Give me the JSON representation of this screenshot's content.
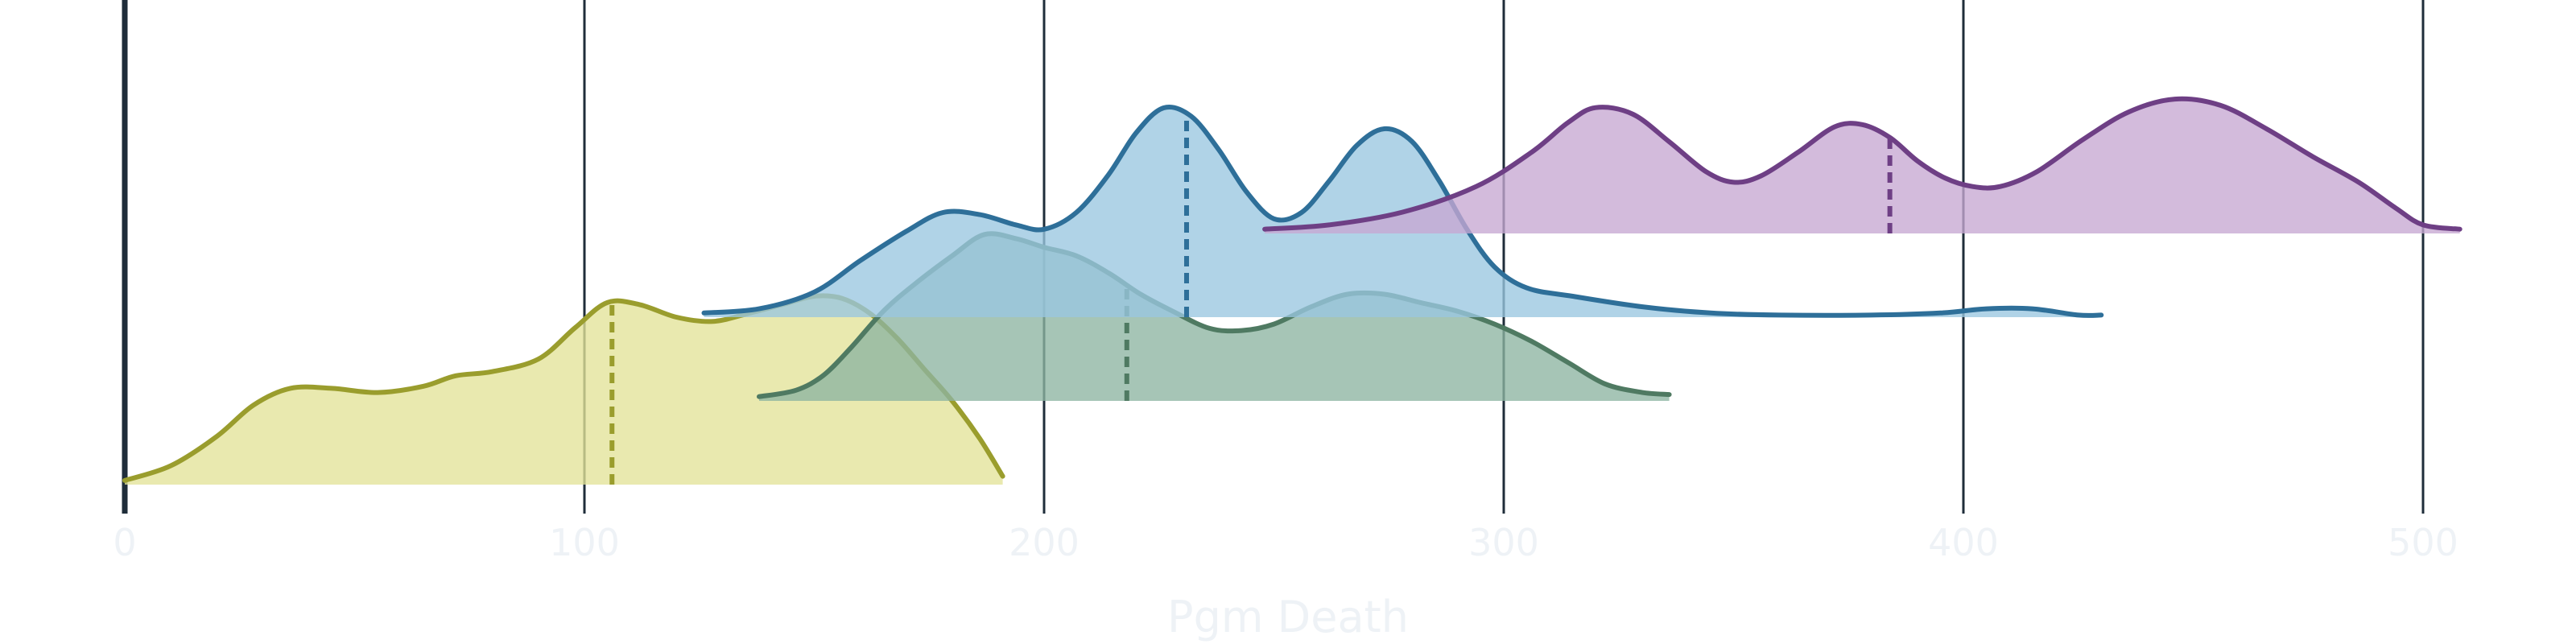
{
  "chart_data": {
    "type": "ridgeline",
    "xlabel": "Pgm Death",
    "xlim": [
      0,
      520
    ],
    "xticks": [
      0,
      100,
      200,
      300,
      400,
      500
    ],
    "xtick_labels": [
      "0",
      "100",
      "200",
      "300",
      "400",
      "500"
    ],
    "grid": "vertical",
    "series": [
      {
        "color": "#9a9d2d",
        "fill": "#e3e398",
        "median": 106,
        "points": [
          [
            0,
            0.02
          ],
          [
            10,
            0.09
          ],
          [
            20,
            0.23
          ],
          [
            28,
            0.38
          ],
          [
            36,
            0.46
          ],
          [
            45,
            0.46
          ],
          [
            55,
            0.44
          ],
          [
            65,
            0.47
          ],
          [
            72,
            0.52
          ],
          [
            80,
            0.54
          ],
          [
            90,
            0.6
          ],
          [
            98,
            0.75
          ],
          [
            105,
            0.87
          ],
          [
            112,
            0.86
          ],
          [
            120,
            0.8
          ],
          [
            128,
            0.78
          ],
          [
            136,
            0.82
          ],
          [
            143,
            0.86
          ],
          [
            150,
            0.9
          ],
          [
            156,
            0.89
          ],
          [
            162,
            0.82
          ],
          [
            168,
            0.7
          ],
          [
            174,
            0.55
          ],
          [
            180,
            0.4
          ],
          [
            186,
            0.22
          ],
          [
            191,
            0.04
          ]
        ]
      },
      {
        "color": "#4f7a62",
        "fill": "#8db5a1",
        "median": 218,
        "points": [
          [
            138,
            0.02
          ],
          [
            146,
            0.05
          ],
          [
            152,
            0.12
          ],
          [
            158,
            0.25
          ],
          [
            165,
            0.42
          ],
          [
            172,
            0.55
          ],
          [
            180,
            0.68
          ],
          [
            187,
            0.78
          ],
          [
            194,
            0.76
          ],
          [
            200,
            0.72
          ],
          [
            207,
            0.68
          ],
          [
            214,
            0.6
          ],
          [
            221,
            0.5
          ],
          [
            228,
            0.42
          ],
          [
            236,
            0.34
          ],
          [
            243,
            0.33
          ],
          [
            250,
            0.36
          ],
          [
            258,
            0.44
          ],
          [
            266,
            0.5
          ],
          [
            274,
            0.5
          ],
          [
            282,
            0.46
          ],
          [
            290,
            0.42
          ],
          [
            298,
            0.36
          ],
          [
            306,
            0.28
          ],
          [
            314,
            0.18
          ],
          [
            322,
            0.08
          ],
          [
            330,
            0.04
          ],
          [
            336,
            0.03
          ]
        ]
      },
      {
        "color": "#2e6f99",
        "fill": "#9ac6e0",
        "median": 231,
        "points": [
          [
            126,
            0.02
          ],
          [
            138,
            0.04
          ],
          [
            150,
            0.12
          ],
          [
            160,
            0.27
          ],
          [
            170,
            0.41
          ],
          [
            178,
            0.5
          ],
          [
            186,
            0.49
          ],
          [
            194,
            0.44
          ],
          [
            200,
            0.42
          ],
          [
            207,
            0.5
          ],
          [
            214,
            0.68
          ],
          [
            220,
            0.88
          ],
          [
            226,
            1.0
          ],
          [
            232,
            0.96
          ],
          [
            238,
            0.8
          ],
          [
            244,
            0.6
          ],
          [
            250,
            0.47
          ],
          [
            256,
            0.5
          ],
          [
            262,
            0.65
          ],
          [
            268,
            0.82
          ],
          [
            274,
            0.9
          ],
          [
            280,
            0.84
          ],
          [
            286,
            0.65
          ],
          [
            292,
            0.42
          ],
          [
            298,
            0.24
          ],
          [
            305,
            0.14
          ],
          [
            315,
            0.1
          ],
          [
            330,
            0.05
          ],
          [
            345,
            0.02
          ],
          [
            360,
            0.01
          ],
          [
            380,
            0.01
          ],
          [
            395,
            0.02
          ],
          [
            405,
            0.04
          ],
          [
            415,
            0.04
          ],
          [
            425,
            0.01
          ],
          [
            430,
            0.01
          ]
        ]
      },
      {
        "color": "#6e3f85",
        "fill": "#c6a8d2",
        "median": 384,
        "points": [
          [
            248,
            0.02
          ],
          [
            262,
            0.04
          ],
          [
            278,
            0.1
          ],
          [
            294,
            0.22
          ],
          [
            306,
            0.38
          ],
          [
            314,
            0.52
          ],
          [
            320,
            0.59
          ],
          [
            328,
            0.56
          ],
          [
            336,
            0.43
          ],
          [
            344,
            0.29
          ],
          [
            350,
            0.24
          ],
          [
            356,
            0.27
          ],
          [
            364,
            0.38
          ],
          [
            372,
            0.5
          ],
          [
            378,
            0.51
          ],
          [
            384,
            0.45
          ],
          [
            390,
            0.34
          ],
          [
            396,
            0.26
          ],
          [
            402,
            0.22
          ],
          [
            408,
            0.22
          ],
          [
            416,
            0.29
          ],
          [
            426,
            0.44
          ],
          [
            436,
            0.57
          ],
          [
            446,
            0.63
          ],
          [
            456,
            0.6
          ],
          [
            466,
            0.49
          ],
          [
            476,
            0.36
          ],
          [
            486,
            0.24
          ],
          [
            494,
            0.12
          ],
          [
            500,
            0.04
          ],
          [
            508,
            0.02
          ]
        ]
      }
    ]
  }
}
